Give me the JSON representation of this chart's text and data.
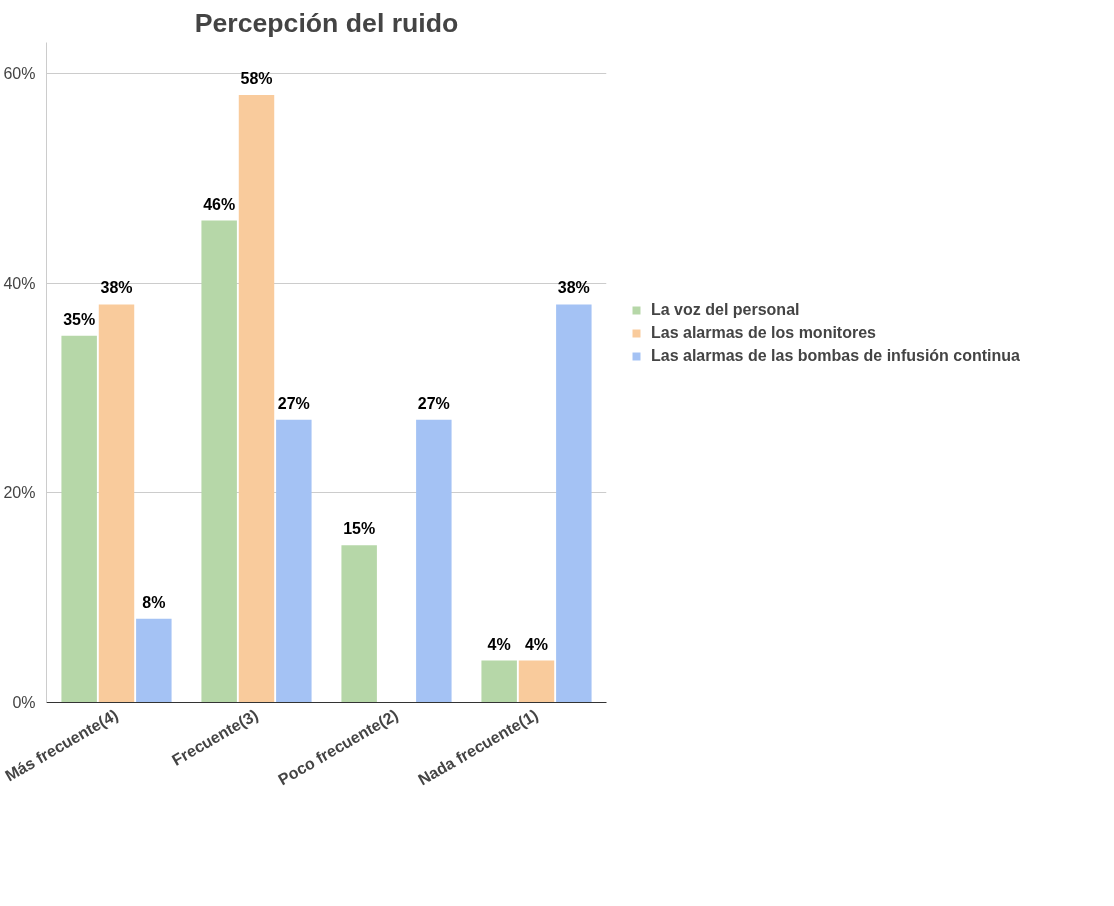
{
  "chart_data": {
    "type": "bar",
    "title": "Percepción del ruido",
    "categories": [
      "Más frecuente(4)",
      "Frecuente(3)",
      "Poco frecuente(2)",
      "Nada frecuente(1)"
    ],
    "series": [
      {
        "name": "La voz del personal",
        "color": "#b6d7a8",
        "values": [
          35,
          46,
          15,
          4
        ],
        "value_labels": [
          "35%",
          "46%",
          "15%",
          "4%"
        ]
      },
      {
        "name": "Las alarmas de los monitores",
        "color": "#f9cb9c",
        "values": [
          38,
          58,
          null,
          4
        ],
        "value_labels": [
          "38%",
          "58%",
          null,
          "4%"
        ]
      },
      {
        "name": "Las alarmas de las bombas de infusión continua",
        "color": "#a4c2f4",
        "values": [
          8,
          27,
          27,
          38
        ],
        "value_labels": [
          "8%",
          "27%",
          "27%",
          "38%"
        ]
      }
    ],
    "ylim": [
      0,
      63
    ],
    "yticks": [
      {
        "value": 0,
        "label": "0%"
      },
      {
        "value": 20,
        "label": "20%"
      },
      {
        "value": 40,
        "label": "40%"
      },
      {
        "value": 60,
        "label": "60%"
      }
    ],
    "grid": "y",
    "legend": "right"
  }
}
